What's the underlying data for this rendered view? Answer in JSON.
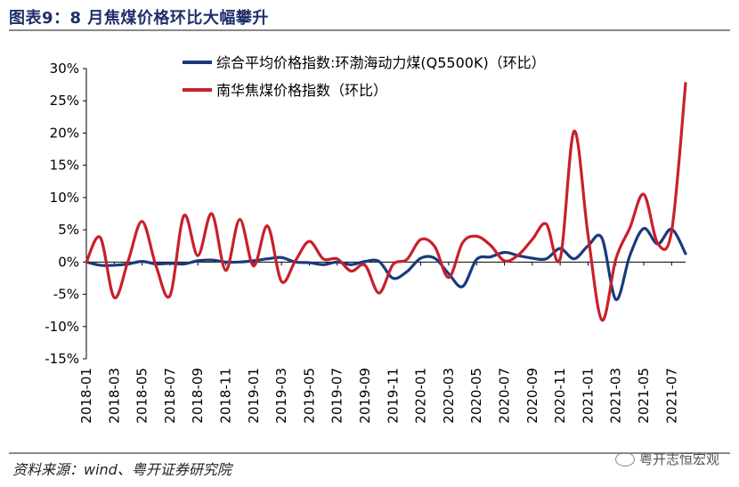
{
  "header": {
    "title": "图表9：8 月焦煤价格环比大幅攀升"
  },
  "footer": {
    "source": "资料来源：wind、粤开证券研究院",
    "watermark": "粤开志恒宏观"
  },
  "colors": {
    "blue": "#1a3a7c",
    "red": "#c8202b",
    "axis": "#000000",
    "rule": "#8a8a8a"
  },
  "chart_data": {
    "type": "line",
    "title": "图表9：8 月焦煤价格环比大幅攀升",
    "xlabel": "",
    "ylabel": "",
    "ylim": [
      -15,
      30
    ],
    "yticks": [
      "30%",
      "25%",
      "20%",
      "15%",
      "10%",
      "5%",
      "0%",
      "-5%",
      "-10%",
      "-15%"
    ],
    "xticks": [
      "2018-01",
      "2018-03",
      "2018-05",
      "2018-07",
      "2018-09",
      "2018-11",
      "2019-01",
      "2019-03",
      "2019-05",
      "2019-07",
      "2019-09",
      "2019-11",
      "2020-01",
      "2020-03",
      "2020-05",
      "2020-07",
      "2020-09",
      "2020-11",
      "2021-01",
      "2021-03",
      "2021-05",
      "2021-07"
    ],
    "x": [
      "2018-01",
      "2018-02",
      "2018-03",
      "2018-04",
      "2018-05",
      "2018-06",
      "2018-07",
      "2018-08",
      "2018-09",
      "2018-10",
      "2018-11",
      "2018-12",
      "2019-01",
      "2019-02",
      "2019-03",
      "2019-04",
      "2019-05",
      "2019-06",
      "2019-07",
      "2019-08",
      "2019-09",
      "2019-10",
      "2019-11",
      "2019-12",
      "2020-01",
      "2020-02",
      "2020-03",
      "2020-04",
      "2020-05",
      "2020-06",
      "2020-07",
      "2020-08",
      "2020-09",
      "2020-10",
      "2020-11",
      "2020-12",
      "2021-01",
      "2021-02",
      "2021-03",
      "2021-04",
      "2021-05",
      "2021-06",
      "2021-07",
      "2021-08"
    ],
    "series": [
      {
        "name": "综合平均价格指数:环渤海动力煤(Q5500K)（环比）",
        "color": "#1a3a7c",
        "values": [
          0.0,
          -0.5,
          -0.5,
          -0.3,
          0.1,
          -0.3,
          -0.2,
          -0.3,
          0.2,
          0.3,
          0.0,
          0.0,
          0.2,
          0.5,
          0.7,
          0.0,
          -0.1,
          -0.4,
          0.0,
          -0.4,
          0.1,
          0.1,
          -2.5,
          -1.5,
          0.6,
          0.6,
          -1.8,
          -3.8,
          0.4,
          0.8,
          1.5,
          1.0,
          0.6,
          0.5,
          2.1,
          0.5,
          2.5,
          3.7,
          -5.8,
          1.0,
          5.2,
          2.8,
          5.1,
          1.3
        ]
      },
      {
        "name": "南华焦煤价格指数（环比）",
        "color": "#c8202b",
        "values": [
          0.0,
          3.8,
          -5.5,
          0.2,
          6.3,
          -0.6,
          -5.2,
          7.2,
          1.0,
          7.5,
          -1.3,
          6.6,
          -0.6,
          5.6,
          -3.0,
          0.2,
          3.2,
          0.5,
          0.5,
          -1.4,
          -0.5,
          -4.8,
          -0.4,
          0.4,
          3.5,
          2.4,
          -2.4,
          3.0,
          4.0,
          2.6,
          0.2,
          1.1,
          3.5,
          5.9,
          0.5,
          20.3,
          4.2,
          -9.0,
          0.5,
          5.3,
          10.5,
          2.9,
          4.8,
          27.7
        ]
      }
    ],
    "legend": "top-left"
  }
}
